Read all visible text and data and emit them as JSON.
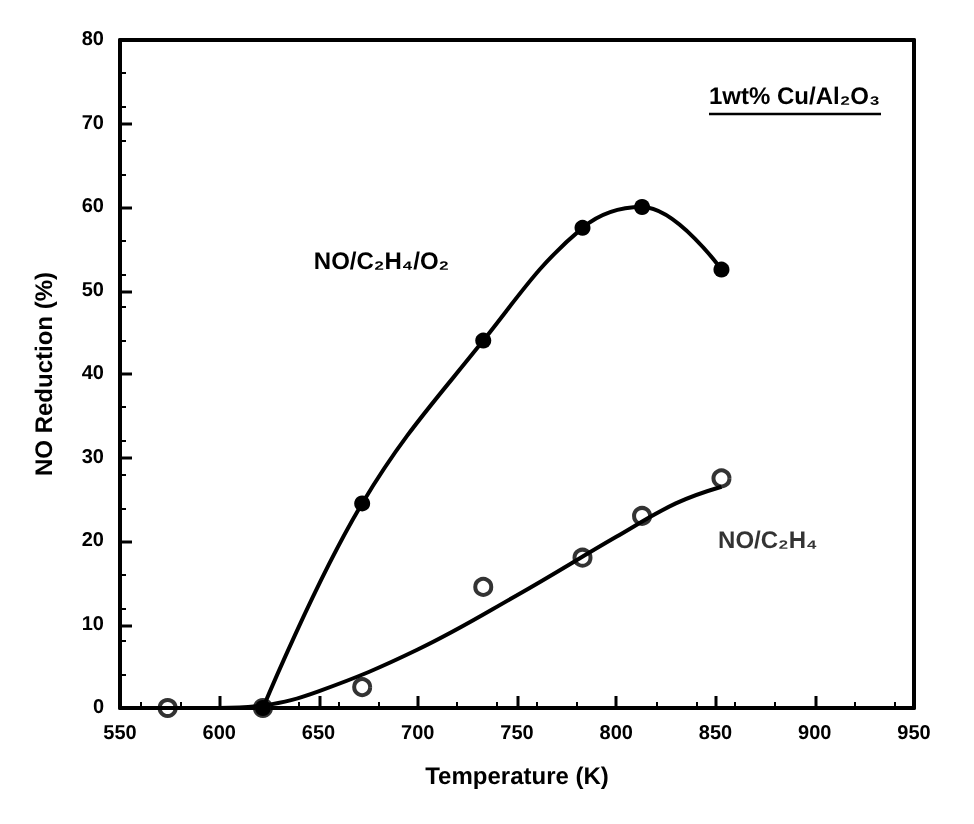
{
  "chart_data": {
    "type": "line",
    "xlabel": "Temperature (K)",
    "ylabel": "NO Reduction (%)",
    "annotations": [
      "1wt% Cu/Al₂O₃"
    ],
    "xlim": [
      550,
      950
    ],
    "xticks": [
      550,
      600,
      650,
      700,
      750,
      800,
      850,
      900,
      950
    ],
    "ylim": [
      0,
      80
    ],
    "yticks": [
      0,
      10,
      20,
      30,
      40,
      50,
      60,
      70,
      80
    ],
    "grid": false,
    "legend": false,
    "series": [
      {
        "name": "NO/C₂H₄/O₂",
        "marker": "circle",
        "color": "#000000",
        "x": [
          622,
          672,
          733,
          783,
          813,
          853
        ],
        "values": [
          0,
          24.5,
          44,
          57.5,
          60,
          52.5
        ]
      },
      {
        "name": "NO/C₂H₄",
        "type": "scatter",
        "marker": "circle",
        "color": "#000000",
        "x": [
          574,
          622,
          672,
          733,
          783,
          813,
          853
        ],
        "values": [
          0,
          0,
          2.5,
          14.5,
          18,
          23,
          27.5
        ]
      },
      {
        "marker": "none",
        "color": "#000000",
        "x": [
          550,
          600,
          622,
          650,
          700,
          750,
          800,
          830,
          853
        ],
        "values": [
          0,
          0,
          0.3,
          2,
          7,
          13.5,
          20.5,
          24.5,
          26.5
        ]
      }
    ]
  }
}
